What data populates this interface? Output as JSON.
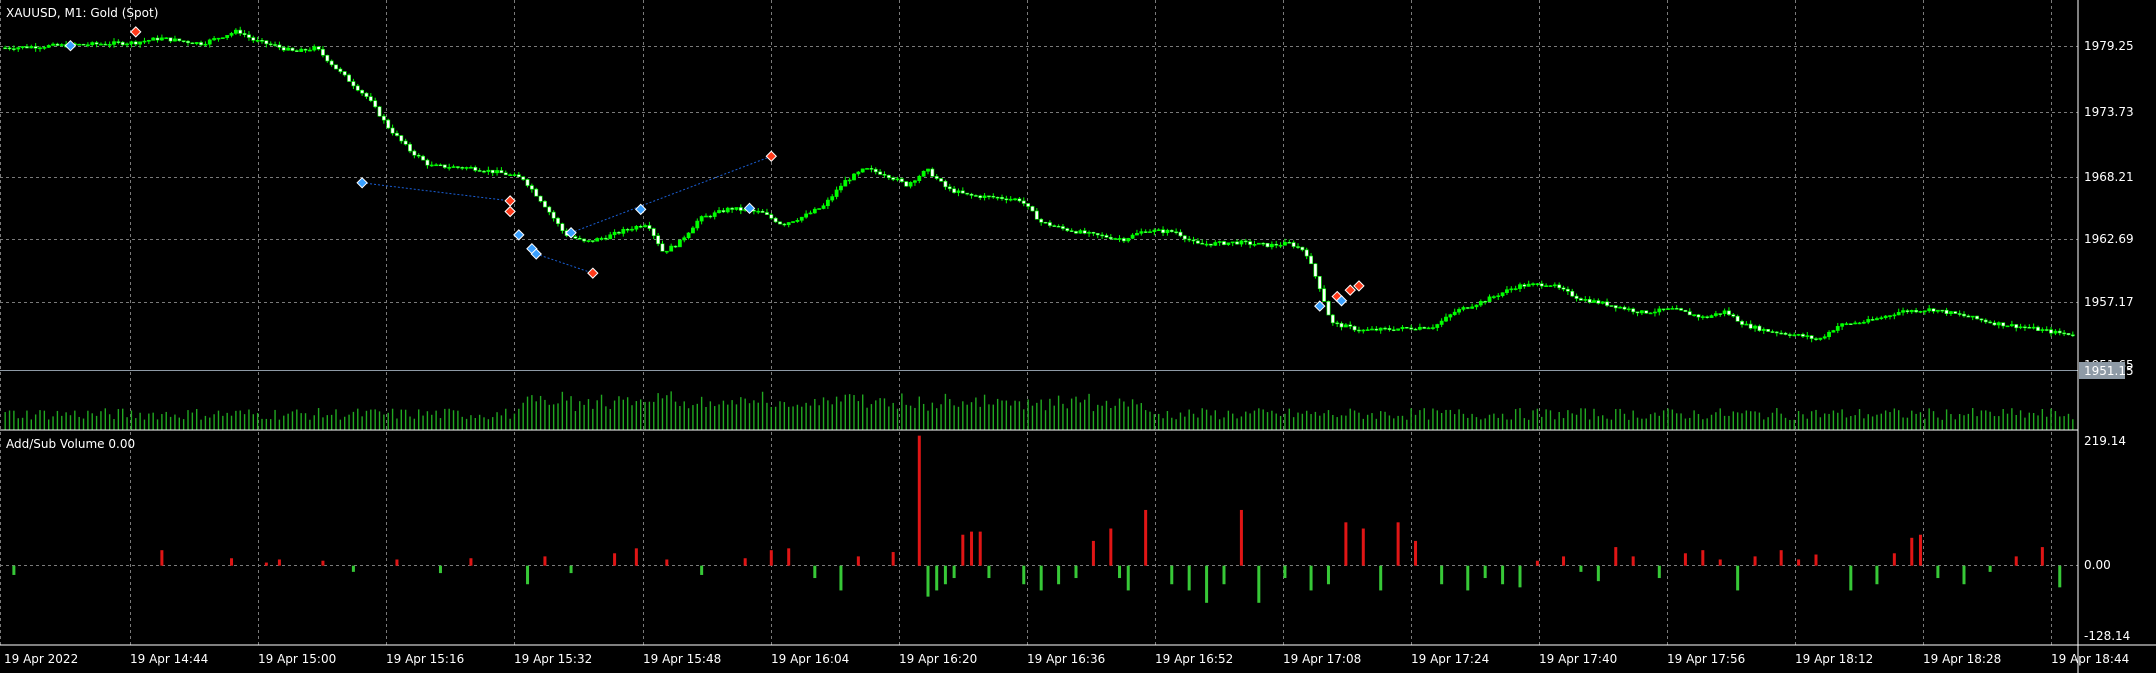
{
  "main": {
    "title": "XAUUSD, M1:  Gold (Spot)",
    "price_labels": [
      "1979.25",
      "1973.73",
      "1968.21",
      "1962.69",
      "1957.17"
    ],
    "current_price": "1951.15",
    "current_price_label_partial": "1951.65",
    "y_range": [
      1948.5,
      1983.5
    ]
  },
  "indicator": {
    "title": "Add/Sub Volume 0.00",
    "labels": [
      "219.14",
      "0.00",
      "-128.14"
    ],
    "y_range": [
      -128.14,
      219.14
    ]
  },
  "time_axis": {
    "labels": [
      "19 Apr 2022",
      "19 Apr 14:44",
      "19 Apr 15:00",
      "19 Apr 15:16",
      "19 Apr 15:32",
      "19 Apr 15:48",
      "19 Apr 16:04",
      "19 Apr 16:20",
      "19 Apr 16:36",
      "19 Apr 16:52",
      "19 Apr 17:08",
      "19 Apr 17:24",
      "19 Apr 17:40",
      "19 Apr 17:56",
      "19 Apr 18:12",
      "19 Apr 18:28",
      "19 Apr 18:44"
    ]
  },
  "colors": {
    "background": "#000000",
    "grid": "#7a7a7a",
    "bull": "#00ff00",
    "bear": "#ffffff",
    "wick": "#00ff00",
    "volume": "#21a821",
    "addsub_pos": "#e01515",
    "addsub_neg": "#37c837",
    "axis_text": "#ffffff",
    "trade_line": "#1a5fd6",
    "buy_marker": "#3aa0ff",
    "sell_marker": "#ff3a1a"
  },
  "chart_data": {
    "type": "candlestick",
    "symbol": "XAUUSD",
    "timeframe": "M1",
    "close_path": [
      [
        0,
        1979.0
      ],
      [
        15,
        1979.3
      ],
      [
        25,
        1979.5
      ],
      [
        30,
        1979.9
      ],
      [
        38,
        1979.4
      ],
      [
        42,
        1980.1
      ],
      [
        45,
        1980.6
      ],
      [
        48,
        1979.7
      ],
      [
        52,
        1979.2
      ],
      [
        56,
        1978.6
      ],
      [
        60,
        1979.0
      ],
      [
        64,
        1977.0
      ],
      [
        70,
        1974.3
      ],
      [
        74,
        1971.5
      ],
      [
        78,
        1969.4
      ],
      [
        82,
        1967.9
      ],
      [
        90,
        1967.7
      ],
      [
        96,
        1967.2
      ],
      [
        100,
        1966.7
      ],
      [
        104,
        1964.3
      ],
      [
        108,
        1961.5
      ],
      [
        112,
        1960.7
      ],
      [
        116,
        1961.2
      ],
      [
        120,
        1961.9
      ],
      [
        124,
        1962.5
      ],
      [
        127,
        1959.8
      ],
      [
        130,
        1960.6
      ],
      [
        134,
        1962.9
      ],
      [
        140,
        1963.9
      ],
      [
        146,
        1963.5
      ],
      [
        150,
        1962.4
      ],
      [
        154,
        1963.1
      ],
      [
        158,
        1964.1
      ],
      [
        162,
        1966.4
      ],
      [
        166,
        1967.6
      ],
      [
        170,
        1967.1
      ],
      [
        174,
        1966.1
      ],
      [
        178,
        1967.5
      ],
      [
        182,
        1965.7
      ],
      [
        186,
        1965.1
      ],
      [
        192,
        1964.9
      ],
      [
        196,
        1964.7
      ],
      [
        200,
        1962.6
      ],
      [
        204,
        1962.0
      ],
      [
        210,
        1961.4
      ],
      [
        216,
        1961.0
      ],
      [
        220,
        1961.8
      ],
      [
        226,
        1961.7
      ],
      [
        230,
        1960.5
      ],
      [
        238,
        1960.7
      ],
      [
        244,
        1960.4
      ],
      [
        248,
        1960.6
      ],
      [
        251,
        1959.9
      ],
      [
        254,
        1956.2
      ],
      [
        256,
        1953.1
      ],
      [
        262,
        1952.4
      ],
      [
        270,
        1952.6
      ],
      [
        276,
        1952.8
      ],
      [
        280,
        1954.2
      ],
      [
        286,
        1955.3
      ],
      [
        292,
        1956.6
      ],
      [
        298,
        1956.8
      ],
      [
        304,
        1955.4
      ],
      [
        310,
        1954.8
      ],
      [
        316,
        1954.1
      ],
      [
        322,
        1954.4
      ],
      [
        328,
        1953.6
      ],
      [
        332,
        1954.2
      ],
      [
        336,
        1952.9
      ],
      [
        340,
        1952.4
      ],
      [
        344,
        1952.1
      ],
      [
        348,
        1951.8
      ],
      [
        350,
        1951.5
      ],
      [
        354,
        1952.9
      ],
      [
        360,
        1953.3
      ],
      [
        366,
        1954.2
      ],
      [
        372,
        1954.4
      ],
      [
        378,
        1953.8
      ],
      [
        384,
        1953.1
      ],
      [
        390,
        1952.7
      ],
      [
        396,
        1952.2
      ],
      [
        400,
        1952.0
      ]
    ],
    "trades": [
      {
        "bar": 30,
        "price": 1980.5,
        "side": "sell"
      },
      {
        "bar": 15,
        "price": 1979.2,
        "side": "buy"
      },
      {
        "bar": 82,
        "price": 1966.3,
        "side": "buy"
      },
      {
        "bar": 116,
        "price": 1964.6,
        "side": "sell"
      },
      {
        "bar": 116,
        "price": 1963.6,
        "side": "sell"
      },
      {
        "bar": 118,
        "price": 1961.4,
        "side": "buy"
      },
      {
        "bar": 121,
        "price": 1960.1,
        "side": "buy"
      },
      {
        "bar": 122,
        "price": 1959.6,
        "side": "buy"
      },
      {
        "bar": 130,
        "price": 1961.6,
        "side": "buy"
      },
      {
        "bar": 135,
        "price": 1957.8,
        "side": "sell"
      },
      {
        "bar": 146,
        "price": 1963.8,
        "side": "buy"
      },
      {
        "bar": 171,
        "price": 1963.9,
        "side": "buy"
      },
      {
        "bar": 176,
        "price": 1968.8,
        "side": "sell"
      },
      {
        "bar": 302,
        "price": 1954.7,
        "side": "buy"
      },
      {
        "bar": 306,
        "price": 1955.6,
        "side": "sell"
      },
      {
        "bar": 307,
        "price": 1955.2,
        "side": "buy"
      },
      {
        "bar": 309,
        "price": 1956.2,
        "side": "sell"
      },
      {
        "bar": 311,
        "price": 1956.6,
        "side": "sell"
      }
    ],
    "trade_lines": [
      [
        [
          82,
          1966.3
        ],
        [
          116,
          1964.6
        ]
      ],
      [
        [
          122,
          1959.6
        ],
        [
          135,
          1957.8
        ]
      ],
      [
        [
          130,
          1961.6
        ],
        [
          176,
          1968.8
        ]
      ]
    ],
    "addsub_bars": [
      [
        2,
        -15
      ],
      [
        36,
        25
      ],
      [
        52,
        12
      ],
      [
        60,
        5
      ],
      [
        63,
        10
      ],
      [
        73,
        8
      ],
      [
        80,
        -10
      ],
      [
        90,
        10
      ],
      [
        100,
        -12
      ],
      [
        107,
        12
      ],
      [
        120,
        -30
      ],
      [
        124,
        15
      ],
      [
        130,
        -12
      ],
      [
        140,
        20
      ],
      [
        145,
        28
      ],
      [
        152,
        10
      ],
      [
        160,
        -15
      ],
      [
        170,
        12
      ],
      [
        176,
        25
      ],
      [
        180,
        28
      ],
      [
        186,
        -20
      ],
      [
        192,
        -40
      ],
      [
        196,
        15
      ],
      [
        204,
        22
      ],
      [
        210,
        210
      ],
      [
        212,
        -50
      ],
      [
        214,
        -40
      ],
      [
        216,
        -30
      ],
      [
        218,
        -20
      ],
      [
        220,
        50
      ],
      [
        222,
        55
      ],
      [
        224,
        55
      ],
      [
        226,
        -20
      ],
      [
        234,
        -30
      ],
      [
        238,
        -40
      ],
      [
        242,
        -30
      ],
      [
        246,
        -20
      ],
      [
        250,
        40
      ],
      [
        254,
        60
      ],
      [
        256,
        -20
      ],
      [
        258,
        -40
      ],
      [
        262,
        90
      ],
      [
        268,
        -30
      ],
      [
        272,
        -40
      ],
      [
        276,
        -60
      ],
      [
        280,
        -30
      ],
      [
        284,
        90
      ],
      [
        288,
        -60
      ],
      [
        294,
        -20
      ],
      [
        300,
        -40
      ],
      [
        304,
        -30
      ],
      [
        308,
        70
      ],
      [
        312,
        60
      ],
      [
        316,
        -40
      ],
      [
        320,
        70
      ],
      [
        324,
        40
      ],
      [
        330,
        -30
      ],
      [
        336,
        -40
      ],
      [
        340,
        -20
      ],
      [
        344,
        -30
      ],
      [
        348,
        -35
      ],
      [
        352,
        8
      ],
      [
        358,
        15
      ],
      [
        362,
        -10
      ],
      [
        366,
        -25
      ],
      [
        370,
        30
      ],
      [
        374,
        15
      ],
      [
        380,
        -20
      ],
      [
        386,
        20
      ],
      [
        390,
        25
      ],
      [
        394,
        10
      ],
      [
        398,
        -40
      ],
      [
        402,
        15
      ],
      [
        408,
        25
      ],
      [
        412,
        10
      ],
      [
        416,
        18
      ],
      [
        424,
        -40
      ],
      [
        430,
        -30
      ],
      [
        434,
        20
      ],
      [
        438,
        45
      ],
      [
        440,
        50
      ],
      [
        444,
        -20
      ],
      [
        450,
        -30
      ],
      [
        456,
        -10
      ],
      [
        462,
        15
      ],
      [
        468,
        30
      ],
      [
        472,
        -35
      ]
    ],
    "notes": "price series approximate, bars indexed across visible window"
  }
}
